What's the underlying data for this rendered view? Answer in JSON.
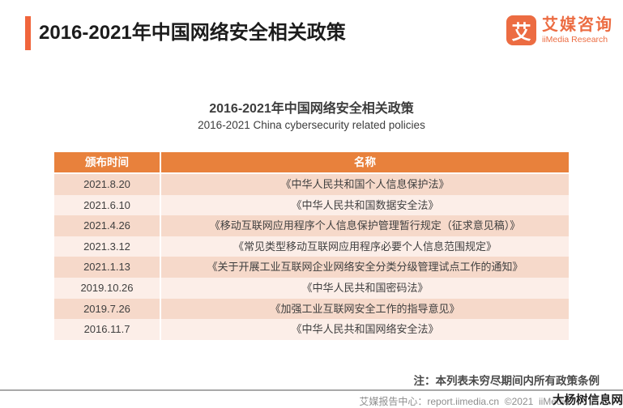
{
  "header": {
    "title": "2016-2021年中国网络安全相关政策",
    "logo": {
      "icon_char": "艾",
      "name_zh": "艾媒咨询",
      "name_en": "iiMedia Research"
    }
  },
  "subtitle": {
    "zh": "2016-2021年中国网络安全相关政策",
    "en": "2016-2021 China cybersecurity related policies"
  },
  "table": {
    "headers": [
      "颁布时间",
      "名称"
    ],
    "rows": [
      {
        "date": "2021.8.20",
        "name": "《中华人民共和国个人信息保护法》"
      },
      {
        "date": "2021.6.10",
        "name": "《中华人民共和国数据安全法》"
      },
      {
        "date": "2021.4.26",
        "name": "《移动互联网应用程序个人信息保护管理暂行规定（征求意见稿）》"
      },
      {
        "date": "2021.3.12",
        "name": "《常见类型移动互联网应用程序必要个人信息范围规定》"
      },
      {
        "date": "2021.1.13",
        "name": "《关于开展工业互联网企业网络安全分类分级管理试点工作的通知》"
      },
      {
        "date": "2019.10.26",
        "name": "《中华人民共和国密码法》"
      },
      {
        "date": "2019.7.26",
        "name": "《加强工业互联网安全工作的指导意见》"
      },
      {
        "date": "2016.11.7",
        "name": "《中华人民共和国网络安全法》"
      }
    ]
  },
  "note": "注：本列表未穷尽期间内所有政策条例",
  "footer": "艾媒报告中心：report.iimedia.cn  ©2021  iiMedia",
  "watermark": "大杨树信息网",
  "colors": {
    "accent_bar": "#f0653c",
    "logo_orange": "#ec6c42",
    "table_header_bg": "#e8813c",
    "row_shade_dark": "#f6d9ca",
    "row_shade_light": "#fceee8",
    "footer_line": "#a9a9a9"
  }
}
